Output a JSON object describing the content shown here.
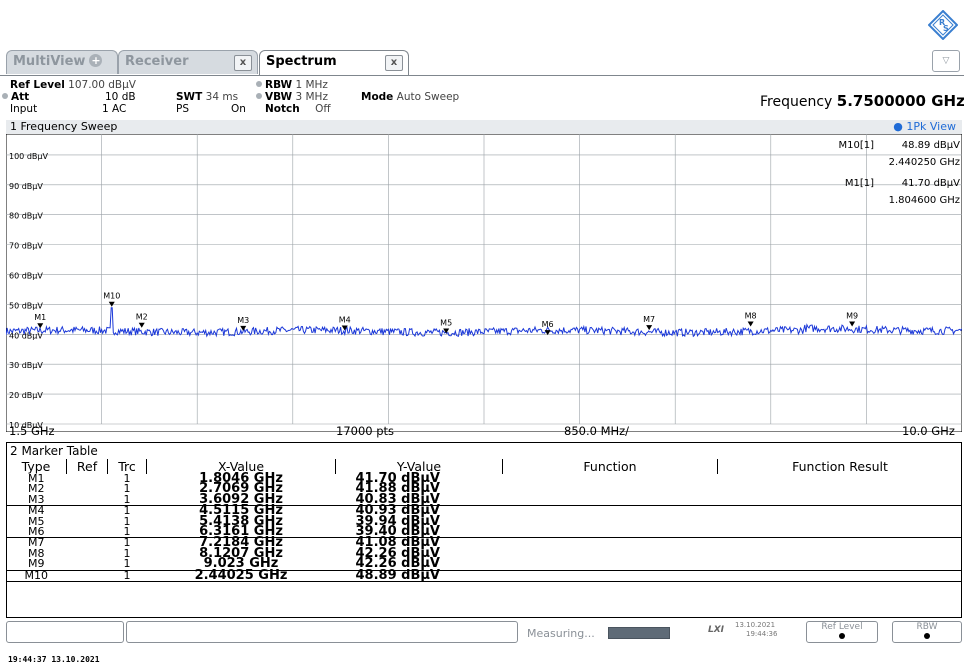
{
  "tabs": [
    {
      "label": "MultiView",
      "active": false
    },
    {
      "label": "Receiver",
      "active": false
    },
    {
      "label": "Spectrum",
      "active": true
    }
  ],
  "tab_close_glyph": "x",
  "dropdown_glyph": "▽",
  "settings": {
    "ref_level_label": "Ref Level",
    "ref_level_value": "107.00 dBµV",
    "att_label": "Att",
    "att_value": "10 dB",
    "input_label": "Input",
    "input_value": "1 AC",
    "swt_label": "SWT",
    "swt_value": "34 ms",
    "ps_label": "PS",
    "ps_value": "On",
    "rbw_label": "RBW",
    "rbw_value": "1 MHz",
    "vbw_label": "VBW",
    "vbw_value": "3 MHz",
    "notch_label": "Notch",
    "notch_value": "Off",
    "mode_label": "Mode",
    "mode_value": "Auto Sweep",
    "frequency_label": "Frequency",
    "frequency_value": "5.7500000 GHz"
  },
  "diagram": {
    "title": "1 Frequency Sweep",
    "view_label": "1Pk View",
    "marker_readout": [
      {
        "name": "M10[1]",
        "level": "48.89 dBµV",
        "freq": "2.440250 GHz"
      },
      {
        "name": "M1[1]",
        "level": "41.70 dBµV",
        "freq": "1.804600 GHz"
      }
    ],
    "start": "1.5 GHz",
    "points": "17000 pts",
    "span_per_div": "850.0 MHz/",
    "stop": "10.0 GHz"
  },
  "chart_data": {
    "type": "line",
    "title": "1 Frequency Sweep",
    "xlabel": "",
    "ylabel": "",
    "xlim": [
      1.5,
      10.0
    ],
    "ylim": [
      10,
      107
    ],
    "y_ticks": [
      100,
      90,
      80,
      70,
      60,
      50,
      40,
      30,
      20,
      10
    ],
    "y_tick_labels": [
      "100 dBµV",
      "90 dBµV",
      "80 dBµV",
      "70 dBµV",
      "60 dBµV",
      "50 dBµV",
      "40 dBµV",
      "30 dBµV",
      "20 dBµV",
      "10 dBµV"
    ],
    "grid": true,
    "trace_color": "#1b38d8",
    "trace_level_dbuv": 41.0,
    "markers": [
      {
        "name": "M1",
        "x": 1.8046,
        "y": 41.7
      },
      {
        "name": "M2",
        "x": 2.7069,
        "y": 41.88
      },
      {
        "name": "M3",
        "x": 3.6092,
        "y": 40.83
      },
      {
        "name": "M4",
        "x": 4.5115,
        "y": 40.93
      },
      {
        "name": "M5",
        "x": 5.4138,
        "y": 39.94
      },
      {
        "name": "M6",
        "x": 6.3161,
        "y": 39.4
      },
      {
        "name": "M7",
        "x": 7.2184,
        "y": 41.08
      },
      {
        "name": "M8",
        "x": 8.1207,
        "y": 42.26
      },
      {
        "name": "M9",
        "x": 9.023,
        "y": 42.26
      },
      {
        "name": "M10",
        "x": 2.44025,
        "y": 48.89
      }
    ]
  },
  "marker_table": {
    "title": "2 Marker Table",
    "headers": [
      "Type",
      "Ref",
      "Trc",
      "X-Value",
      "Y-Value",
      "Function",
      "Function Result"
    ],
    "rows": [
      [
        "M1",
        "",
        "1",
        "1.8046 GHz",
        "41.70 dBµV"
      ],
      [
        "M2",
        "",
        "1",
        "2.7069 GHz",
        "41.88 dBµV"
      ],
      [
        "M3",
        "",
        "1",
        "3.6092 GHz",
        "40.83 dBµV"
      ],
      [
        "M4",
        "",
        "1",
        "4.5115 GHz",
        "40.93 dBµV"
      ],
      [
        "M5",
        "",
        "1",
        "5.4138 GHz",
        "39.94 dBµV"
      ],
      [
        "M6",
        "",
        "1",
        "6.3161 GHz",
        "39.40 dBµV"
      ],
      [
        "M7",
        "",
        "1",
        "7.2184 GHz",
        "41.08 dBµV"
      ],
      [
        "M8",
        "",
        "1",
        "8.1207 GHz",
        "42.26 dBµV"
      ],
      [
        "M9",
        "",
        "1",
        "9.023 GHz",
        "42.26 dBµV"
      ],
      [
        "M10",
        "",
        "1",
        "2.44025 GHz",
        "48.89 dBµV"
      ]
    ]
  },
  "status": {
    "measuring": "Measuring...",
    "lxi_label": "LXI",
    "date": "13.10.2021",
    "time": "19:44:36",
    "softkey_ref_level": "Ref Level",
    "softkey_rbw": "RBW"
  },
  "footer": {
    "timestamp": "19:44:37  13.10.2021"
  },
  "colors": {
    "accent": "#1f6bd6",
    "trace": "#1b38d8",
    "tab_inactive": "#d6dbe0"
  }
}
